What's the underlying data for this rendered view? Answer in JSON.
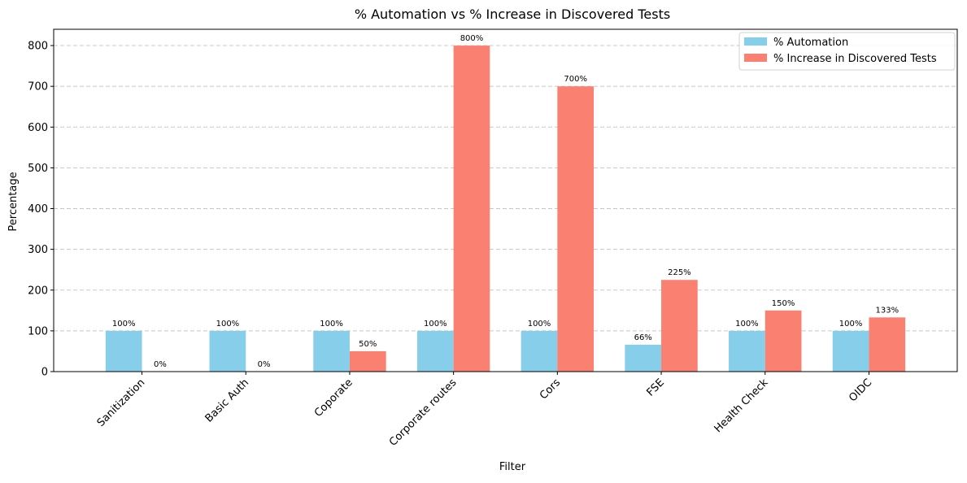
{
  "chart_data": {
    "type": "bar",
    "title": "% Automation vs % Increase in Discovered Tests",
    "xlabel": "Filter",
    "ylabel": "Percentage",
    "categories": [
      "Sanitization",
      "Basic Auth",
      "Coporate",
      "Corporate routes",
      "Cors",
      "FSE",
      "Health Check",
      "OIDC"
    ],
    "series": [
      {
        "name": "% Automation",
        "color": "#87ceeb",
        "values": [
          100,
          100,
          100,
          100,
          100,
          66,
          100,
          100
        ],
        "labels": [
          "100%",
          "100%",
          "100%",
          "100%",
          "100%",
          "66%",
          "100%",
          "100%"
        ]
      },
      {
        "name": "% Increase in Discovered Tests",
        "color": "#fa8072",
        "values": [
          0,
          0,
          50,
          800,
          700,
          225,
          150,
          133
        ],
        "labels": [
          "0%",
          "0%",
          "50%",
          "800%",
          "700%",
          "225%",
          "150%",
          "133%"
        ]
      }
    ],
    "ylim": [
      0,
      840
    ],
    "yticks": [
      0,
      100,
      200,
      300,
      400,
      500,
      600,
      700,
      800
    ],
    "grid": "y-dashed",
    "legend_position": "top-right"
  }
}
